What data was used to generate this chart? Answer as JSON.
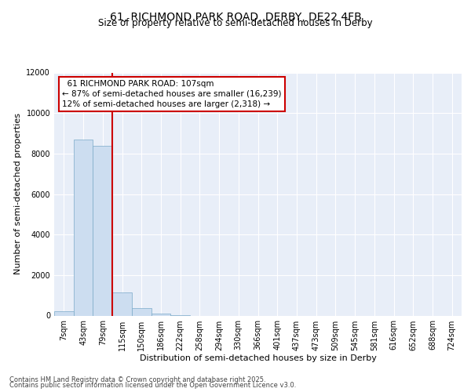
{
  "title_line1": "61, RICHMOND PARK ROAD, DERBY, DE22 4FB",
  "title_line2": "Size of property relative to semi-detached houses in Derby",
  "xlabel": "Distribution of semi-detached houses by size in Derby",
  "ylabel": "Number of semi-detached properties",
  "footer_line1": "Contains HM Land Registry data © Crown copyright and database right 2025.",
  "footer_line2": "Contains public sector information licensed under the Open Government Licence v3.0.",
  "annotation_line1": "  61 RICHMOND PARK ROAD: 107sqm",
  "annotation_line2": "← 87% of semi-detached houses are smaller (16,239)",
  "annotation_line3": "12% of semi-detached houses are larger (2,318) →",
  "categories": [
    "7sqm",
    "43sqm",
    "79sqm",
    "115sqm",
    "150sqm",
    "186sqm",
    "222sqm",
    "258sqm",
    "294sqm",
    "330sqm",
    "366sqm",
    "401sqm",
    "437sqm",
    "473sqm",
    "509sqm",
    "545sqm",
    "581sqm",
    "616sqm",
    "652sqm",
    "688sqm",
    "724sqm"
  ],
  "bar_heights": [
    200,
    8700,
    8400,
    1150,
    350,
    80,
    10,
    0,
    0,
    0,
    0,
    0,
    0,
    0,
    0,
    0,
    0,
    0,
    0,
    0,
    0
  ],
  "bar_color": "#ccddf0",
  "bar_edge_color": "#7aaac8",
  "vline_color": "#cc0000",
  "vline_x": 2.5,
  "annotation_box_color": "#cc0000",
  "ylim": [
    0,
    12000
  ],
  "yticks": [
    0,
    2000,
    4000,
    6000,
    8000,
    10000,
    12000
  ],
  "background_color": "#e8eef8",
  "grid_color": "#ffffff",
  "title_fontsize": 10,
  "subtitle_fontsize": 8.5,
  "axis_label_fontsize": 8,
  "tick_fontsize": 7,
  "annotation_fontsize": 7.5,
  "footer_fontsize": 6
}
